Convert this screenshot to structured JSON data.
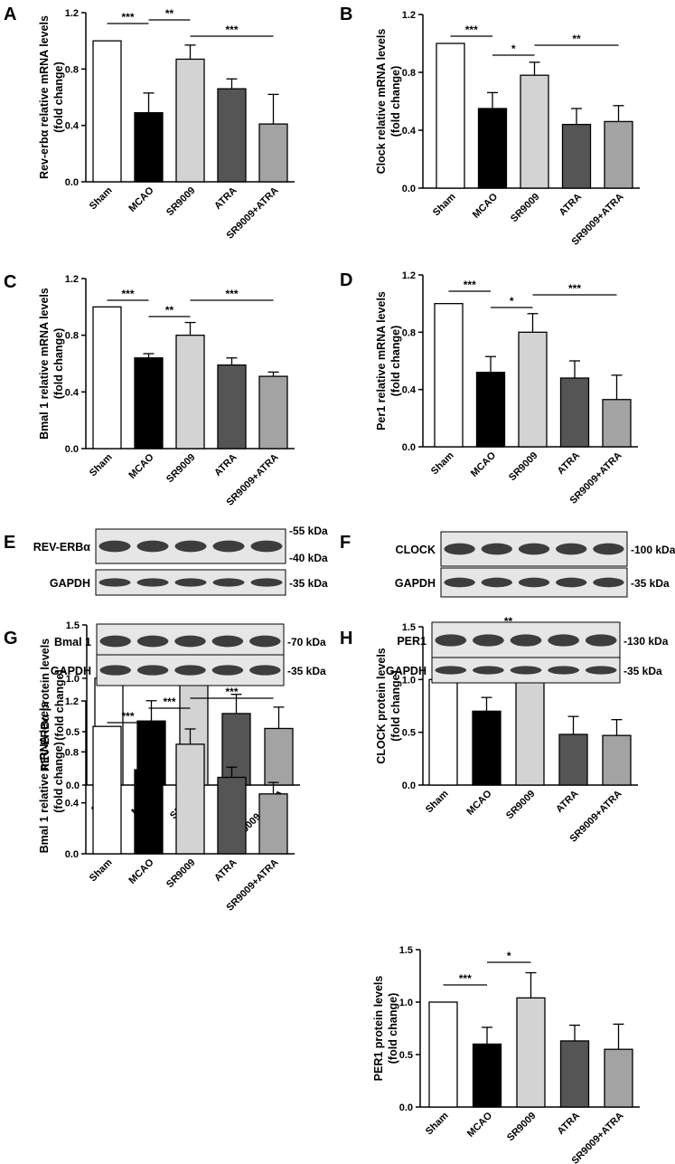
{
  "categories": [
    "Sham",
    "MCAO",
    "SR9009",
    "ATRA",
    "SR9009+ATRA"
  ],
  "colors": {
    "bar_fills": [
      "#ffffff",
      "#000000",
      "#d3d3d3",
      "#555555",
      "#a3a3a3"
    ],
    "stroke": "#000000",
    "blot_background": "#e6e6e6",
    "blot_band": "#1e1e1e"
  },
  "panels": {
    "A": {
      "letter": "A"
    },
    "B": {
      "letter": "B"
    },
    "C": {
      "letter": "C"
    },
    "D": {
      "letter": "D"
    },
    "E": {
      "letter": "E",
      "blots": [
        {
          "label": "REV-ERBα",
          "kda": [
            "-55 kDa",
            "-40 kDa"
          ]
        },
        {
          "label": "GAPDH",
          "kda": [
            "-35 kDa"
          ]
        }
      ]
    },
    "F": {
      "letter": "F",
      "blots": [
        {
          "label": "CLOCK",
          "kda": [
            "-100 kDa"
          ]
        },
        {
          "label": "GAPDH",
          "kda": [
            "-35 kDa"
          ]
        }
      ]
    },
    "G": {
      "letter": "G",
      "blots": [
        {
          "label": "Bmal 1",
          "kda": [
            "-70 kDa"
          ]
        },
        {
          "label": "GAPDH",
          "kda": [
            "-35 kDa"
          ]
        }
      ]
    },
    "H": {
      "letter": "H",
      "blots": [
        {
          "label": "PER1",
          "kda": [
            "-130 kDa"
          ]
        },
        {
          "label": "GAPDH",
          "kda": [
            "-35 kDa"
          ]
        }
      ]
    }
  },
  "chart_data": [
    {
      "panel": "A",
      "type": "bar",
      "ylabel_lines": [
        "Rev-erbα relative mRNA levels",
        "(fold change)"
      ],
      "categories": [
        "Sham",
        "MCAO",
        "SR9009",
        "ATRA",
        "SR9009+ATRA"
      ],
      "values": [
        1.0,
        0.49,
        0.87,
        0.66,
        0.41
      ],
      "errors": [
        0,
        0.14,
        0.1,
        0.07,
        0.21
      ],
      "ylim": [
        0,
        1.2
      ],
      "yticks": [
        "0.0",
        "0.4",
        "0.8",
        "1.2"
      ],
      "significance": [
        {
          "label": "***",
          "from": 0,
          "to": 1
        },
        {
          "label": "**",
          "from": 1,
          "to": 2
        },
        {
          "label": "***",
          "from": 2,
          "to": 4
        }
      ]
    },
    {
      "panel": "B",
      "type": "bar",
      "ylabel_lines": [
        "Clock relative mRNA levels",
        "(fold change)"
      ],
      "categories": [
        "Sham",
        "MCAO",
        "SR9009",
        "ATRA",
        "SR9009+ATRA"
      ],
      "values": [
        1.0,
        0.55,
        0.78,
        0.44,
        0.46
      ],
      "errors": [
        0,
        0.11,
        0.09,
        0.11,
        0.11
      ],
      "ylim": [
        0,
        1.2
      ],
      "yticks": [
        "0.0",
        "0.4",
        "0.8",
        "1.2"
      ],
      "significance": [
        {
          "label": "***",
          "from": 0,
          "to": 1
        },
        {
          "label": "*",
          "from": 1,
          "to": 2
        },
        {
          "label": "**",
          "from": 2,
          "to": 4
        }
      ]
    },
    {
      "panel": "C",
      "type": "bar",
      "ylabel_lines": [
        "Bmal 1 relative mRNA levels",
        "(fold change)"
      ],
      "categories": [
        "Sham",
        "MCAO",
        "SR9009",
        "ATRA",
        "SR9009+ATRA"
      ],
      "values": [
        1.0,
        0.64,
        0.8,
        0.59,
        0.51
      ],
      "errors": [
        0,
        0.03,
        0.09,
        0.05,
        0.03
      ],
      "ylim": [
        0,
        1.2
      ],
      "yticks": [
        "0.0",
        "0.4",
        "0.8",
        "1.2"
      ],
      "significance": [
        {
          "label": "***",
          "from": 0,
          "to": 1
        },
        {
          "label": "**",
          "from": 1,
          "to": 2
        },
        {
          "label": "***",
          "from": 2,
          "to": 4
        }
      ]
    },
    {
      "panel": "D",
      "type": "bar",
      "ylabel_lines": [
        "Per1 relative mRNA levels",
        "(fold change)"
      ],
      "categories": [
        "Sham",
        "MCAO",
        "SR9009",
        "ATRA",
        "SR9009+ATRA"
      ],
      "values": [
        1.0,
        0.52,
        0.8,
        0.48,
        0.33
      ],
      "errors": [
        0,
        0.11,
        0.13,
        0.12,
        0.17
      ],
      "ylim": [
        0,
        1.2
      ],
      "yticks": [
        "0.0",
        "0.4",
        "0.8",
        "1.2"
      ],
      "significance": [
        {
          "label": "***",
          "from": 0,
          "to": 1
        },
        {
          "label": "*",
          "from": 1,
          "to": 2
        },
        {
          "label": "***",
          "from": 2,
          "to": 4
        }
      ]
    },
    {
      "panel": "E",
      "type": "bar",
      "ylabel_lines": [
        "REV-ERBα protein levels",
        "(fold change)"
      ],
      "categories": [
        "Sham",
        "MCAO",
        "SR9009",
        "ATRA",
        "SR9009+ATRA"
      ],
      "values": [
        1.0,
        0.6,
        1.06,
        0.67,
        0.53
      ],
      "errors": [
        0,
        0.19,
        0.15,
        0.18,
        0.2
      ],
      "ylim": [
        0,
        1.5
      ],
      "yticks": [
        "0.0",
        "0.5",
        "1.0",
        "1.5"
      ],
      "significance": [
        {
          "label": "***",
          "from": 0,
          "to": 1
        },
        {
          "label": "***",
          "from": 1,
          "to": 2
        },
        {
          "label": "***",
          "from": 2,
          "to": 4
        }
      ]
    },
    {
      "panel": "F",
      "type": "bar",
      "ylabel_lines": [
        "CLOCK protein levels",
        "(fold change)"
      ],
      "categories": [
        "Sham",
        "MCAO",
        "SR9009",
        "ATRA",
        "SR9009+ATRA"
      ],
      "values": [
        1.0,
        0.7,
        1.0,
        0.48,
        0.47
      ],
      "errors": [
        0,
        0.13,
        0.16,
        0.17,
        0.15
      ],
      "ylim": [
        0,
        1.5
      ],
      "yticks": [
        "0.0",
        "0.5",
        "1.0",
        "1.5"
      ],
      "significance": [
        {
          "label": "**",
          "from": 0,
          "to": 1
        },
        {
          "label": "**",
          "from": 1,
          "to": 2
        },
        {
          "label": "***",
          "from": 2,
          "to": 4
        }
      ]
    },
    {
      "panel": "G",
      "type": "bar",
      "ylabel_lines": [
        "Bmal 1 relative mRNA levels",
        "(fold change)"
      ],
      "categories": [
        "Sham",
        "MCAO",
        "SR9009",
        "ATRA",
        "SR9009+ATRA"
      ],
      "values": [
        1.0,
        0.66,
        0.86,
        0.6,
        0.47
      ],
      "errors": [
        0,
        0.04,
        0.12,
        0.08,
        0.09
      ],
      "ylim": [
        0,
        1.2
      ],
      "yticks": [
        "0.0",
        "0.4",
        "0.8",
        "1.2"
      ],
      "significance": [
        {
          "label": "***",
          "from": 0,
          "to": 1
        },
        {
          "label": "***",
          "from": 1,
          "to": 2
        },
        {
          "label": "***",
          "from": 2,
          "to": 4
        }
      ]
    },
    {
      "panel": "H",
      "type": "bar",
      "ylabel_lines": [
        "PER1 protein levels",
        "(fold change)"
      ],
      "categories": [
        "Sham",
        "MCAO",
        "SR9009",
        "ATRA",
        "SR9009+ATRA"
      ],
      "values": [
        1.0,
        0.6,
        1.04,
        0.63,
        0.55
      ],
      "errors": [
        0,
        0.16,
        0.24,
        0.15,
        0.24
      ],
      "ylim": [
        0,
        1.5
      ],
      "yticks": [
        "0.0",
        "0.5",
        "1.0",
        "1.5"
      ],
      "significance": [
        {
          "label": "***",
          "from": 0,
          "to": 1
        },
        {
          "label": "*",
          "from": 1,
          "to": 2
        }
      ]
    }
  ]
}
